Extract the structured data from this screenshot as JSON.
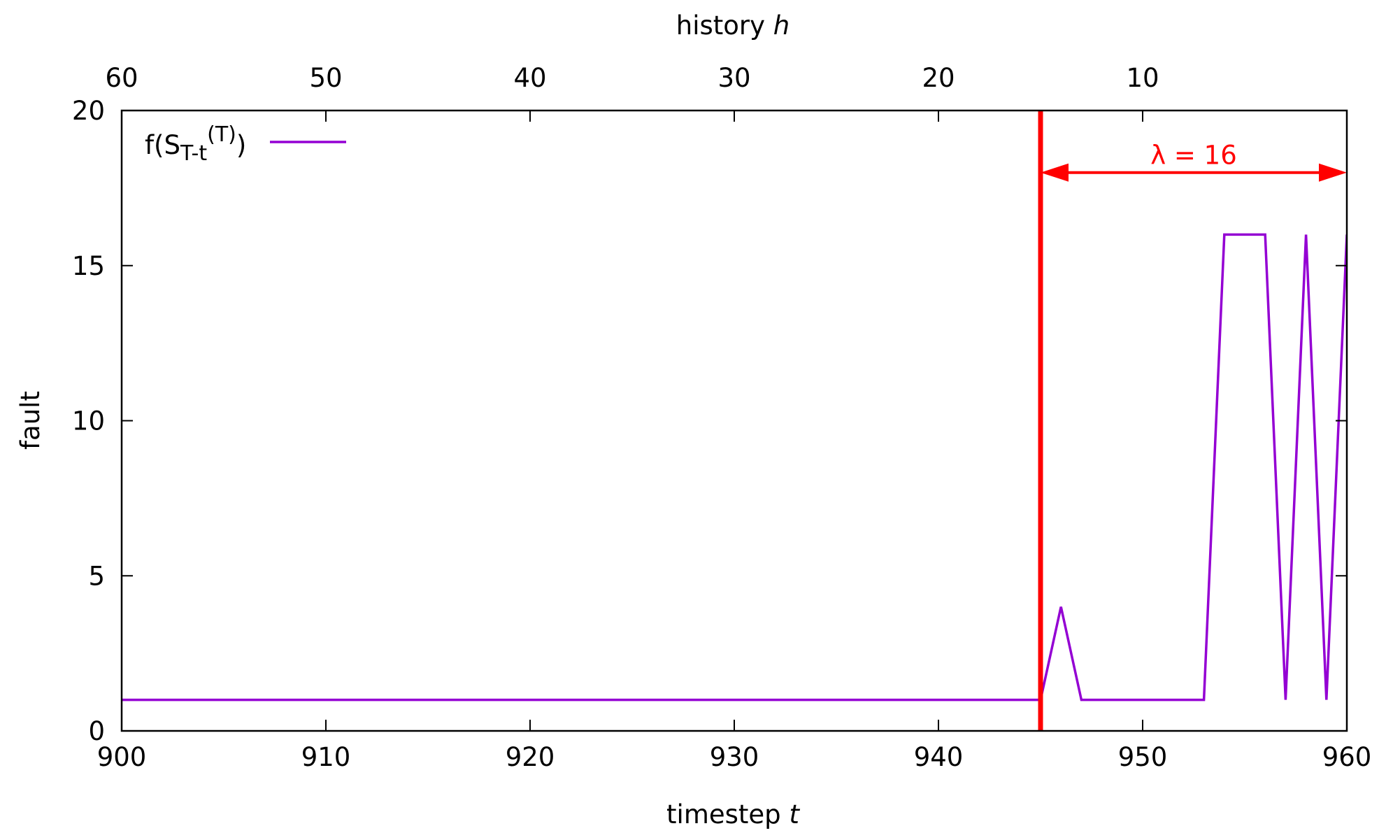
{
  "chart_data": {
    "type": "line",
    "title": "",
    "xlabel": {
      "text": "timestep",
      "var": "t"
    },
    "x2label": {
      "text": "history",
      "var": "h"
    },
    "ylabel": "fault",
    "xlim": [
      900,
      960
    ],
    "ylim": [
      0,
      20
    ],
    "x2lim": [
      60,
      0
    ],
    "x_ticks": [
      900,
      910,
      920,
      930,
      940,
      950,
      960
    ],
    "x2_ticks": [
      60,
      50,
      40,
      30,
      20,
      10
    ],
    "y_ticks": [
      0,
      5,
      10,
      15,
      20
    ],
    "grid": false,
    "legend": {
      "placement": "top-left",
      "entries": [
        {
          "base": "f(S",
          "sub": "T-t",
          "sup": "(T)",
          "close": ")",
          "color": "#9400d3"
        }
      ]
    },
    "series": [
      {
        "color": "#9400d3",
        "x": [
          900,
          901,
          902,
          903,
          904,
          905,
          906,
          907,
          908,
          909,
          910,
          911,
          912,
          913,
          914,
          915,
          916,
          917,
          918,
          919,
          920,
          921,
          922,
          923,
          924,
          925,
          926,
          927,
          928,
          929,
          930,
          931,
          932,
          933,
          934,
          935,
          936,
          937,
          938,
          939,
          940,
          941,
          942,
          943,
          944,
          945,
          946,
          947,
          948,
          949,
          950,
          951,
          952,
          953,
          954,
          955,
          956,
          957,
          958,
          959,
          960
        ],
        "y": [
          1,
          1,
          1,
          1,
          1,
          1,
          1,
          1,
          1,
          1,
          1,
          1,
          1,
          1,
          1,
          1,
          1,
          1,
          1,
          1,
          1,
          1,
          1,
          1,
          1,
          1,
          1,
          1,
          1,
          1,
          1,
          1,
          1,
          1,
          1,
          1,
          1,
          1,
          1,
          1,
          1,
          1,
          1,
          1,
          1,
          1,
          4,
          1,
          1,
          1,
          1,
          1,
          1,
          1,
          16,
          16,
          16,
          1,
          16,
          1,
          16
        ]
      }
    ],
    "annotations": {
      "vline": {
        "x": 945,
        "color": "#ff0000"
      },
      "arrow": {
        "from": 945,
        "to": 960,
        "y": 18,
        "label": "λ = 16",
        "color": "#ff0000"
      }
    }
  }
}
